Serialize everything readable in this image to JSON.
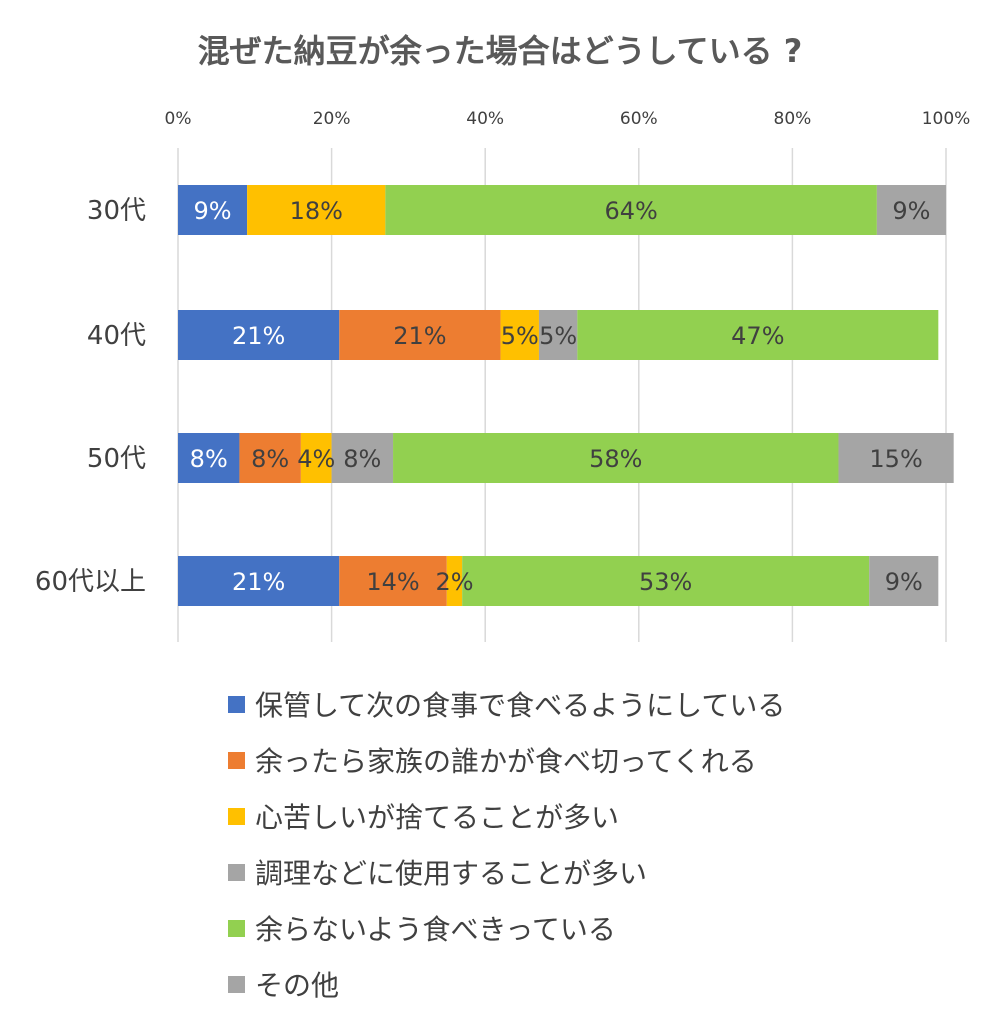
{
  "chart_data": {
    "type": "bar",
    "orientation": "horizontal",
    "stacked": true,
    "title": "混ぜた納豆が余った場合はどうしている ?",
    "xlim": [
      0,
      100
    ],
    "xticks": [
      "0%",
      "20%",
      "40%",
      "60%",
      "80%",
      "100%"
    ],
    "xtick_values": [
      0,
      20,
      40,
      60,
      80,
      100
    ],
    "categories": [
      "30代",
      "40代",
      "50代",
      "60代以上"
    ],
    "series": [
      {
        "name": "保管して次の食事で食べるようにしている",
        "color": "#4472C4",
        "label_color": "#ffffff",
        "values": [
          9,
          21,
          8,
          21
        ],
        "labels": [
          "9%",
          "21%",
          "8%",
          "21%"
        ]
      },
      {
        "name": "余ったら家族の誰かが食べ切ってくれる",
        "color": "#ED7D31",
        "label_color": "#404040",
        "values": [
          0,
          21,
          8,
          14
        ],
        "labels": [
          "",
          "21%",
          "8%",
          "14%"
        ]
      },
      {
        "name": "心苦しいが捨てることが多い",
        "color": "#FFC000",
        "label_color": "#404040",
        "values": [
          18,
          5,
          4,
          2
        ],
        "labels": [
          "18%",
          "5%",
          "4%",
          "2%"
        ]
      },
      {
        "name": "調理などに使用することが多い",
        "color": "#A5A5A5",
        "label_color": "#404040",
        "values": [
          0,
          5,
          8,
          0
        ],
        "labels": [
          "",
          "5%",
          "8%",
          ""
        ]
      },
      {
        "name": "余らないよう食べきっている",
        "color": "#92D050",
        "label_color": "#404040",
        "values": [
          64,
          47,
          58,
          53
        ],
        "labels": [
          "64%",
          "47%",
          "58%",
          "53%"
        ]
      },
      {
        "name": "その他",
        "color": "#A5A5A5",
        "label_color": "#404040",
        "values": [
          9,
          0,
          15,
          9
        ],
        "labels": [
          "9%",
          "",
          "15%",
          "9%"
        ]
      }
    ],
    "legend_position": "bottom",
    "grid": true
  }
}
